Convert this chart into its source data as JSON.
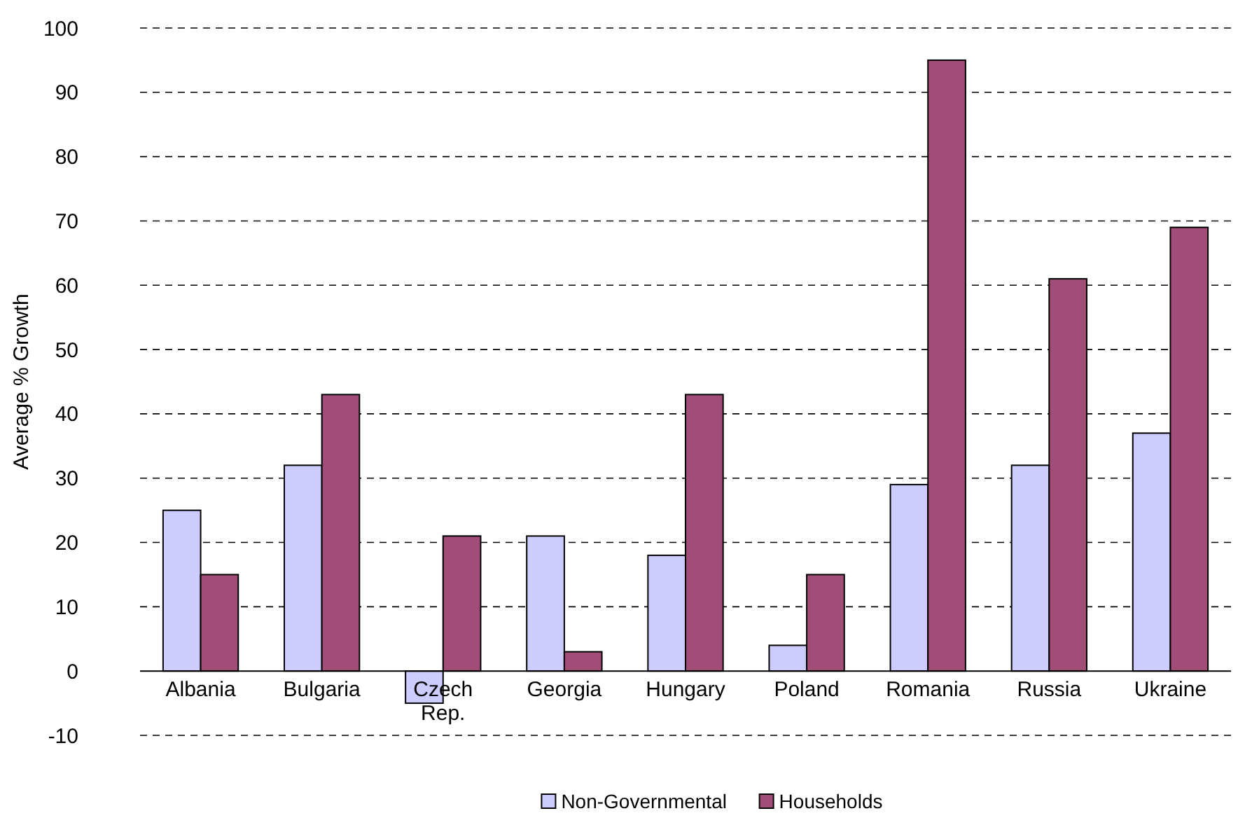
{
  "chart_data": {
    "type": "bar",
    "ylabel": "Average % Growth",
    "categories": [
      "Albania",
      "Bulgaria",
      "Czech Rep.",
      "Georgia",
      "Hungary",
      "Poland",
      "Romania",
      "Russia",
      "Ukraine"
    ],
    "series": [
      {
        "name": "Non-Governmental",
        "color": "#ccccff",
        "values": [
          25,
          32,
          -5,
          21,
          18,
          4,
          29,
          32,
          37
        ]
      },
      {
        "name": "Households",
        "color": "#a24d78",
        "values": [
          15,
          43,
          21,
          3,
          43,
          15,
          95,
          61,
          69
        ]
      }
    ],
    "ylim": [
      -10,
      100
    ],
    "yticks": [
      -10,
      0,
      10,
      20,
      30,
      40,
      50,
      60,
      70,
      80,
      90,
      100
    ],
    "grid": "y",
    "legend": "bottom"
  }
}
